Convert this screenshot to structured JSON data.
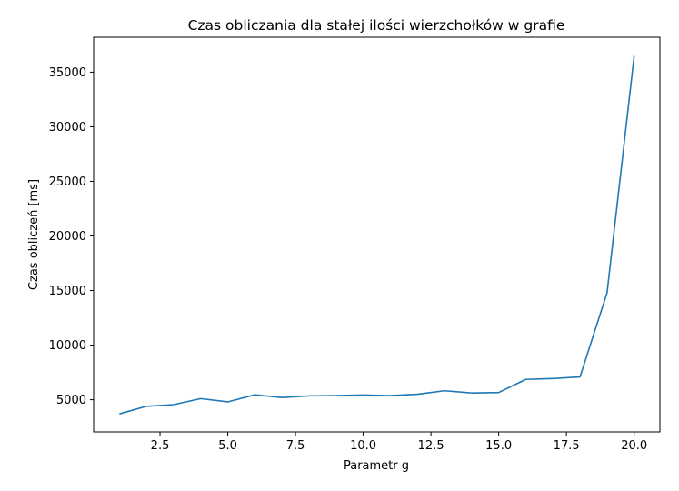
{
  "chart_data": {
    "type": "line",
    "title": "Czas obliczania dla stałej ilości wierzchołków w grafie",
    "xlabel": "Parametr g",
    "ylabel": "Czas obliczeń [ms]",
    "xlim": [
      0.05,
      20.95
    ],
    "ylim": [
      2050,
      38200
    ],
    "xticks": [
      2.5,
      5.0,
      7.5,
      10.0,
      12.5,
      15.0,
      17.5,
      20.0
    ],
    "xtick_labels": [
      "2.5",
      "5.0",
      "7.5",
      "10.0",
      "12.5",
      "15.0",
      "17.5",
      "20.0"
    ],
    "yticks": [
      5000,
      10000,
      15000,
      20000,
      25000,
      30000,
      35000
    ],
    "ytick_labels": [
      "5000",
      "10000",
      "15000",
      "20000",
      "25000",
      "30000",
      "35000"
    ],
    "grid": false,
    "series": [
      {
        "color": "#1f77b4",
        "x": [
          1,
          2,
          3,
          4,
          5,
          6,
          7,
          8,
          9,
          10,
          11,
          12,
          13,
          14,
          15,
          16,
          17,
          18,
          19,
          20
        ],
        "values": [
          3700,
          4400,
          4550,
          5100,
          4800,
          5450,
          5200,
          5350,
          5380,
          5430,
          5380,
          5500,
          5820,
          5620,
          5660,
          6860,
          6940,
          7080,
          14800,
          36500
        ]
      }
    ]
  }
}
